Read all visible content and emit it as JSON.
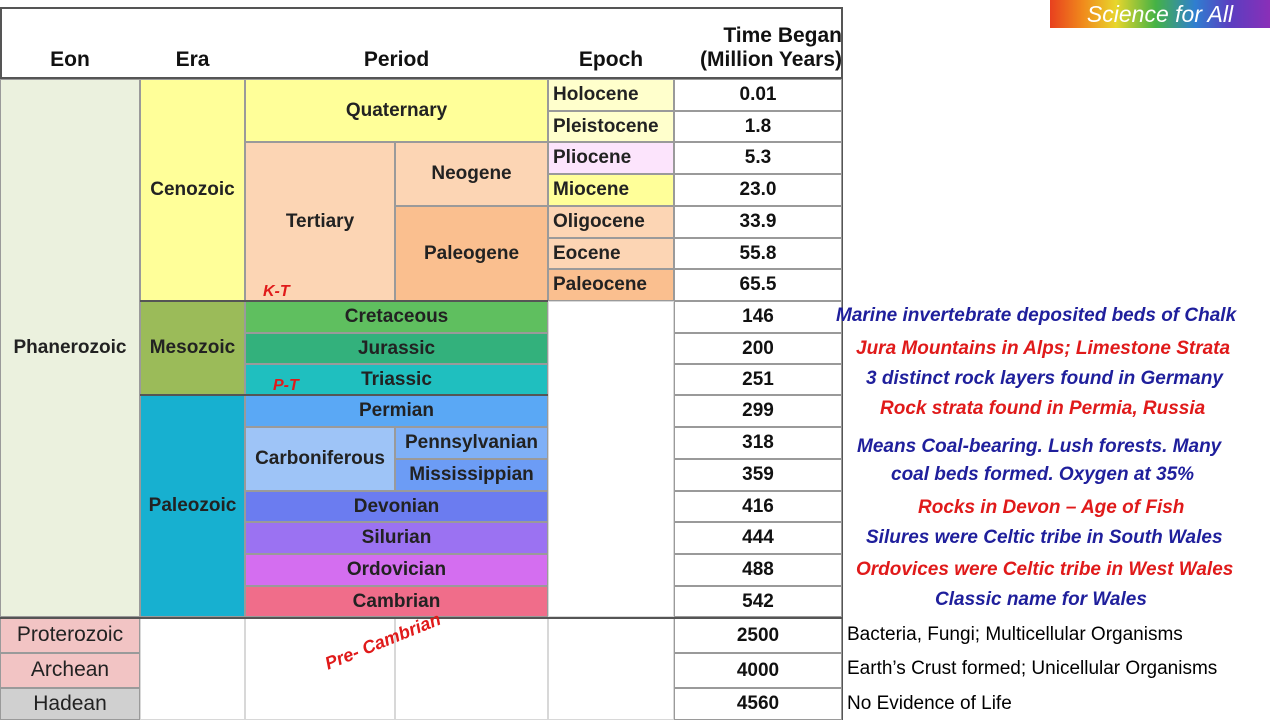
{
  "badge": "Science for All",
  "headers": {
    "eon": "Eon",
    "era": "Era",
    "period": "Period",
    "epoch": "Epoch",
    "time1": "Time Began",
    "time2": "(Million Years)"
  },
  "eons": {
    "phanerozoic": "Phanerozoic",
    "proterozoic": "Proterozoic",
    "archean": "Archean",
    "hadean": "Hadean"
  },
  "eras": {
    "cenozoic": "Cenozoic",
    "mesozoic": "Mesozoic",
    "paleozoic": "Paleozoic"
  },
  "periods": {
    "quaternary": "Quaternary",
    "tertiary": "Tertiary",
    "neogene": "Neogene",
    "paleogene": "Paleogene",
    "cretaceous": "Cretaceous",
    "jurassic": "Jurassic",
    "triassic": "Triassic",
    "permian": "Permian",
    "carboniferous": "Carboniferous",
    "pennsylvanian": "Pennsylvanian",
    "mississippian": "Mississippian",
    "devonian": "Devonian",
    "silurian": "Silurian",
    "ordovician": "Ordovician",
    "cambrian": "Cambrian"
  },
  "epochs": {
    "holocene": "Holocene",
    "pleistocene": "Pleistocene",
    "pliocene": "Pliocene",
    "miocene": "Miocene",
    "oligocene": "Oligocene",
    "eocene": "Eocene",
    "paleocene": "Paleocene"
  },
  "times": [
    "0.01",
    "1.8",
    "5.3",
    "23.0",
    "33.9",
    "55.8",
    "65.5",
    "146",
    "200",
    "251",
    "299",
    "318",
    "359",
    "416",
    "444",
    "488",
    "542",
    "2500",
    "4000",
    "4560"
  ],
  "markers": {
    "kt": "K-T",
    "pt": "P-T",
    "precambrian": "Pre- Cambrian"
  },
  "notes": {
    "cretaceous": "Marine invertebrate deposited beds of Chalk",
    "jurassic": "Jura Mountains in Alps; Limestone Strata",
    "triassic": "3 distinct rock layers found in Germany",
    "permian": "Rock strata found in Permia, Russia",
    "carboniferous1": "Means Coal-bearing.  Lush forests. Many",
    "carboniferous2": "coal beds formed.  Oxygen at 35%",
    "devonian": "Rocks in Devon – Age of Fish",
    "silurian": "Silures were Celtic tribe in South Wales",
    "ordovician": "Ordovices were Celtic tribe in West Wales",
    "cambrian": "Classic name for Wales",
    "proterozoic": "Bacteria, Fungi; Multicellular Organisms",
    "archean": "Earth’s Crust formed; Unicellular Organisms",
    "hadean": "No Evidence of Life"
  },
  "colors": {
    "phanerozoic": "#ebf1de",
    "cenozoic": "#ffff99",
    "quaternary": "#ffff99",
    "tertiary": "#fcd5b4",
    "neogene": "#fcd5b4",
    "paleogene": "#fabf8f",
    "holocene": "#ffffcc",
    "pleistocene": "#ffffcc",
    "pliocene": "#fce4fc",
    "miocene": "#ffff99",
    "oligocene": "#fcd5b4",
    "eocene": "#fcd5b4",
    "paleocene": "#fabf8f",
    "mesozoic": "#9bbb59",
    "cretaceous": "#5fbf5f",
    "jurassic": "#33b17c",
    "triassic": "#1fbfbf",
    "paleozoic": "#17b0d0",
    "permian": "#5aa8f5",
    "carboniferous": "#9ec4f7",
    "pennsylvanian": "#7fb0f7",
    "mississippian": "#6c9cf5",
    "devonian": "#6b7cf0",
    "silurian": "#9b72f2",
    "ordovician": "#d46ef0",
    "cambrian": "#f06d8a",
    "proterozoic": "#f2c4c4",
    "archean": "#f2c4c4",
    "hadean": "#d0d0d0"
  }
}
